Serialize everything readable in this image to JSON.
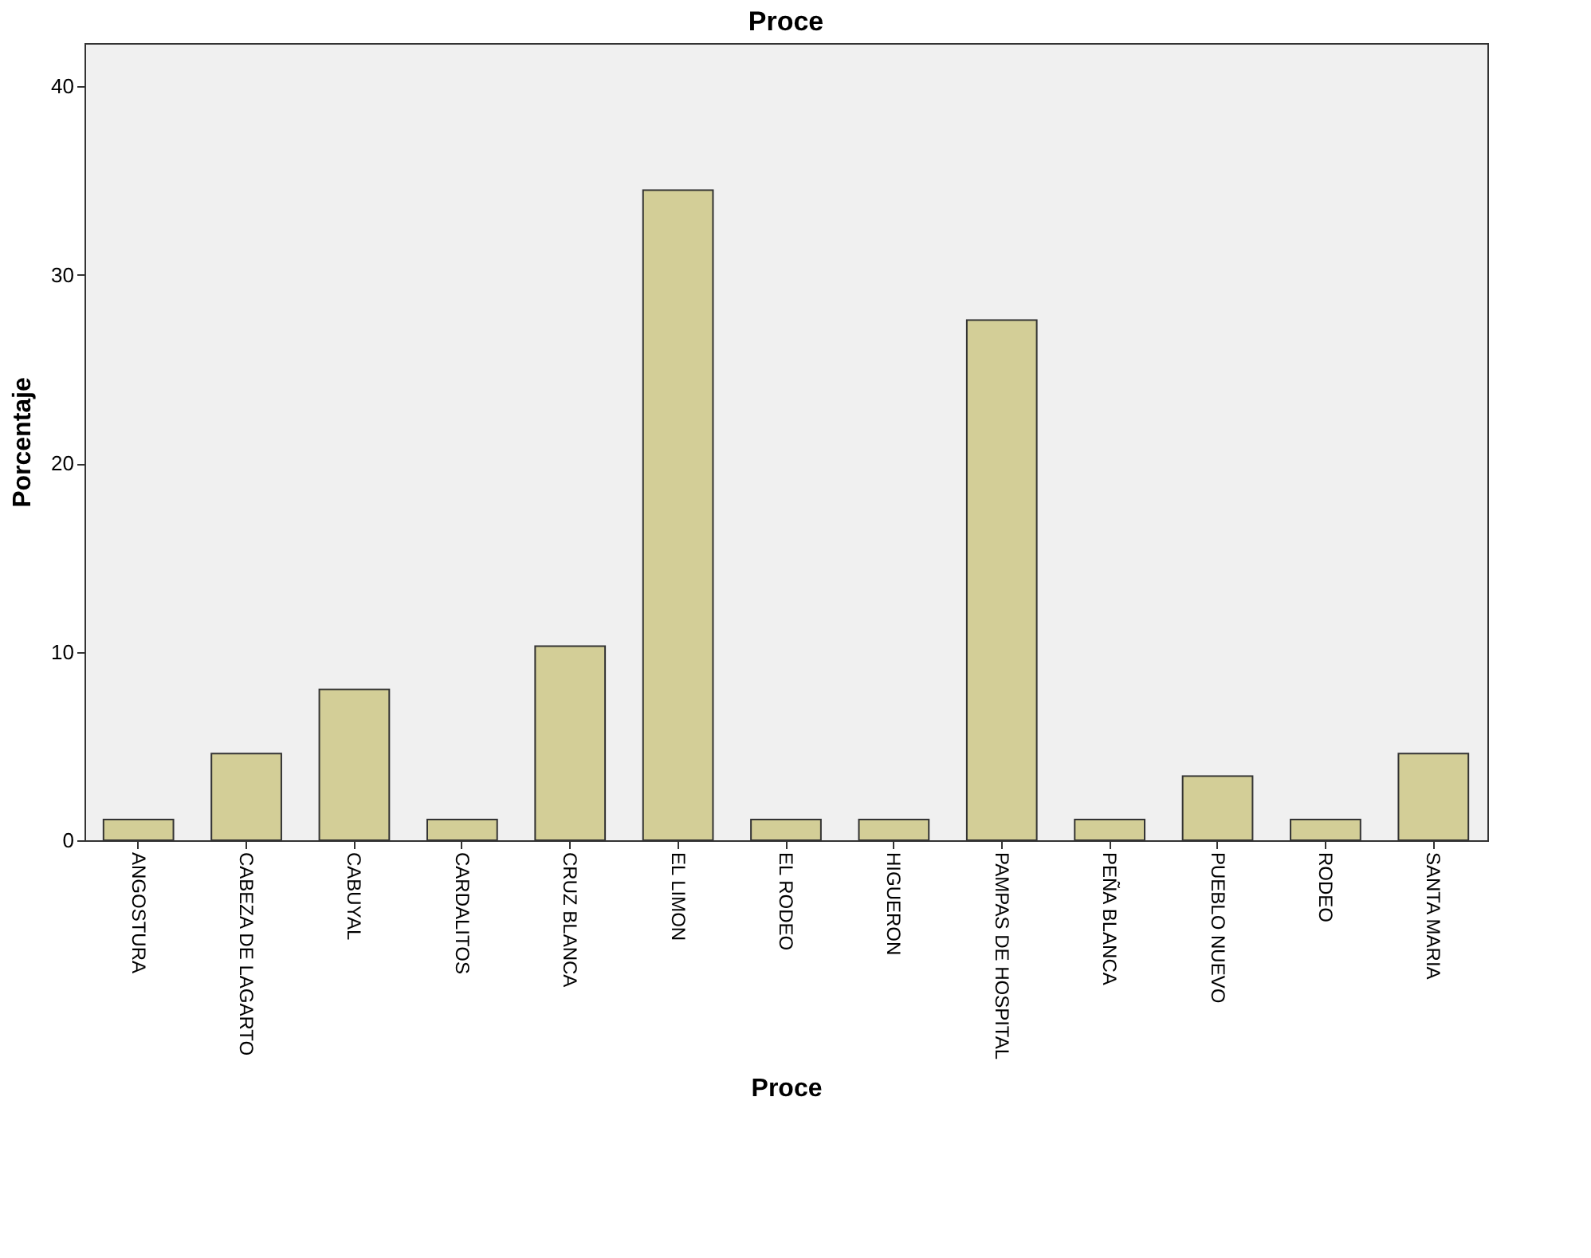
{
  "chart_data": {
    "type": "bar",
    "title": "Proce",
    "xlabel": "Proce",
    "ylabel": "Porcentaje",
    "categories": [
      "ANGOSTURA",
      "CABEZA DE LAGARTO",
      "CABUYAL",
      "CARDALITOS",
      "CRUZ BLANCA",
      "EL LIMON",
      "EL RODEO",
      "HIGUERON",
      "PAMPAS DE HOSPITAL",
      "PEÑA BLANCA",
      "PUEBLO NUEVO",
      "RODEO",
      "SANTA MARIA"
    ],
    "values": [
      1.1,
      4.6,
      8.0,
      1.1,
      10.3,
      34.5,
      1.1,
      1.1,
      27.6,
      1.1,
      3.4,
      1.1,
      4.6
    ],
    "color": "#d3ce97",
    "ylim": [
      0,
      42.3
    ],
    "yticks": [
      0,
      10,
      20,
      30,
      40
    ],
    "grid": false
  }
}
